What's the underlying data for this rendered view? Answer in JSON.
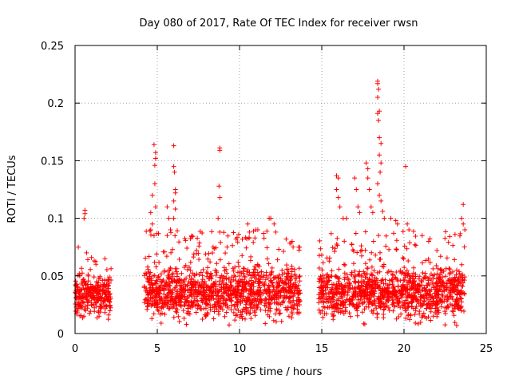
{
  "chart_data": {
    "type": "scatter",
    "title": "Day 080 of 2017, Rate Of TEC Index for receiver rwsn",
    "xlabel": "GPS time / hours",
    "ylabel": "ROTI / TECUs",
    "xlim": [
      0,
      25
    ],
    "ylim": [
      0,
      0.25
    ],
    "x_ticks": [
      0,
      5,
      10,
      15,
      20,
      25
    ],
    "x_tick_labels": [
      "0",
      "5",
      "10",
      "15",
      "20",
      "25"
    ],
    "y_ticks": [
      0,
      0.05,
      0.1,
      0.15,
      0.2,
      0.25
    ],
    "y_tick_labels": [
      "0",
      "0.05",
      "0.1",
      "0.15",
      "0.2",
      "0.25"
    ],
    "grid": true,
    "marker": "plus",
    "color": "#ff0000",
    "series": [
      {
        "segments": [
          {
            "x_start": 0.0,
            "x_end": 2.2,
            "y_low": 0.012,
            "y_typical": 0.032,
            "y_high": 0.065
          },
          {
            "x_start": 4.2,
            "x_end": 13.7,
            "y_low": 0.01,
            "y_typical": 0.035,
            "y_high": 0.09
          },
          {
            "x_start": 14.8,
            "x_end": 23.7,
            "y_low": 0.01,
            "y_typical": 0.035,
            "y_high": 0.09
          }
        ],
        "points": [
          [
            0.6,
            0.107
          ],
          [
            0.6,
            0.104
          ],
          [
            0.55,
            0.1
          ],
          [
            0.2,
            0.075
          ],
          [
            0.7,
            0.07
          ],
          [
            1.0,
            0.066
          ],
          [
            4.6,
            0.09
          ],
          [
            4.8,
            0.085
          ],
          [
            4.8,
            0.164
          ],
          [
            4.9,
            0.157
          ],
          [
            4.9,
            0.152
          ],
          [
            4.85,
            0.146
          ],
          [
            4.85,
            0.13
          ],
          [
            4.7,
            0.12
          ],
          [
            4.6,
            0.105
          ],
          [
            4.7,
            0.095
          ],
          [
            4.9,
            0.11
          ],
          [
            5.6,
            0.11
          ],
          [
            5.7,
            0.1
          ],
          [
            5.6,
            0.085
          ],
          [
            5.8,
            0.09
          ],
          [
            6.0,
            0.163
          ],
          [
            6.0,
            0.145
          ],
          [
            6.05,
            0.14
          ],
          [
            6.1,
            0.125
          ],
          [
            6.1,
            0.122
          ],
          [
            6.0,
            0.115
          ],
          [
            6.1,
            0.108
          ],
          [
            6.0,
            0.1
          ],
          [
            8.8,
            0.161
          ],
          [
            8.8,
            0.159
          ],
          [
            8.75,
            0.128
          ],
          [
            8.8,
            0.118
          ],
          [
            8.7,
            0.1
          ],
          [
            8.8,
            0.088
          ],
          [
            10.5,
            0.095
          ],
          [
            11.0,
            0.09
          ],
          [
            11.8,
            0.1
          ],
          [
            11.9,
            0.1
          ],
          [
            12.1,
            0.095
          ],
          [
            12.2,
            0.088
          ],
          [
            13.2,
            0.08
          ],
          [
            13.6,
            0.075
          ],
          [
            15.0,
            0.068
          ],
          [
            15.9,
            0.137
          ],
          [
            16.0,
            0.135
          ],
          [
            15.9,
            0.125
          ],
          [
            16.0,
            0.118
          ],
          [
            16.1,
            0.11
          ],
          [
            16.3,
            0.1
          ],
          [
            16.5,
            0.1
          ],
          [
            17.0,
            0.135
          ],
          [
            17.1,
            0.125
          ],
          [
            17.2,
            0.11
          ],
          [
            17.3,
            0.105
          ],
          [
            17.7,
            0.148
          ],
          [
            17.8,
            0.143
          ],
          [
            17.8,
            0.135
          ],
          [
            17.9,
            0.125
          ],
          [
            18.0,
            0.11
          ],
          [
            18.1,
            0.105
          ],
          [
            18.4,
            0.219
          ],
          [
            18.4,
            0.217
          ],
          [
            18.45,
            0.212
          ],
          [
            18.4,
            0.205
          ],
          [
            18.5,
            0.193
          ],
          [
            18.4,
            0.191
          ],
          [
            18.45,
            0.185
          ],
          [
            18.5,
            0.17
          ],
          [
            18.6,
            0.165
          ],
          [
            18.5,
            0.155
          ],
          [
            18.6,
            0.148
          ],
          [
            18.55,
            0.14
          ],
          [
            18.4,
            0.13
          ],
          [
            18.5,
            0.12
          ],
          [
            18.6,
            0.115
          ],
          [
            18.7,
            0.106
          ],
          [
            18.8,
            0.1
          ],
          [
            19.2,
            0.1
          ],
          [
            19.5,
            0.098
          ],
          [
            19.6,
            0.095
          ],
          [
            20.1,
            0.145
          ],
          [
            20.2,
            0.095
          ],
          [
            20.3,
            0.09
          ],
          [
            21.1,
            0.085
          ],
          [
            21.5,
            0.08
          ],
          [
            22.0,
            0.072
          ],
          [
            23.1,
            0.086
          ],
          [
            23.6,
            0.112
          ],
          [
            23.5,
            0.1
          ],
          [
            23.6,
            0.095
          ],
          [
            23.7,
            0.09
          ]
        ]
      }
    ]
  }
}
